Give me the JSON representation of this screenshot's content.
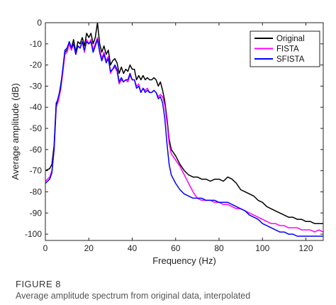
{
  "caption": {
    "figure_label": "FIGURE 8",
    "text": "Average amplitude spectrum from original data, interpolated"
  },
  "chart_data": {
    "type": "line",
    "xlabel": "Frequency (Hz)",
    "ylabel": "Average amplitude (dB)",
    "xlim": [
      0,
      128
    ],
    "ylim": [
      -103,
      0
    ],
    "xticks": [
      0,
      20,
      40,
      60,
      80,
      100,
      120
    ],
    "yticks": [
      0,
      -10,
      -20,
      -30,
      -40,
      -50,
      -60,
      -70,
      -80,
      -90,
      -100
    ],
    "grid": false,
    "legend_position": "top-right",
    "series": [
      {
        "name": "Original",
        "color": "#000000",
        "x": [
          0,
          2,
          3,
          4,
          5,
          6,
          7,
          8,
          9,
          10,
          11,
          12,
          13,
          14,
          15,
          16,
          17,
          18,
          19,
          20,
          21,
          22,
          23,
          24,
          25,
          26,
          27,
          28,
          29,
          30,
          31,
          32,
          33,
          34,
          35,
          36,
          37,
          38,
          39,
          40,
          41,
          42,
          43,
          44,
          45,
          46,
          47,
          48,
          49,
          50,
          51,
          52,
          53,
          54,
          55,
          56,
          57,
          58,
          60,
          62,
          64,
          66,
          68,
          70,
          72,
          74,
          76,
          78,
          80,
          82,
          84,
          86,
          88,
          90,
          92,
          94,
          96,
          98,
          100,
          102,
          104,
          106,
          108,
          110,
          112,
          114,
          116,
          118,
          120,
          122,
          124,
          126,
          128
        ],
        "y": [
          -70,
          -69,
          -67,
          -58,
          -38,
          -36,
          -30,
          -23,
          -14,
          -13,
          -9,
          -12,
          -8,
          -14,
          -9,
          -10,
          -7,
          -11,
          -5,
          -7,
          -5,
          -10,
          -7,
          0,
          -10,
          -14,
          -11,
          -15,
          -13,
          -20,
          -18,
          -17,
          -19,
          -24,
          -21,
          -24,
          -22,
          -23,
          -20,
          -22,
          -22,
          -27,
          -25,
          -27,
          -25,
          -27,
          -26,
          -27,
          -27,
          -26,
          -27,
          -30,
          -28,
          -32,
          -37,
          -45,
          -55,
          -60,
          -63,
          -67,
          -70,
          -72,
          -73,
          -73,
          -74,
          -74,
          -75,
          -74,
          -74,
          -75,
          -73,
          -74,
          -76,
          -79,
          -80,
          -81,
          -82,
          -84,
          -85,
          -87,
          -88,
          -89,
          -90,
          -91,
          -92,
          -92,
          -93,
          -93,
          -94,
          -94,
          -95,
          -95,
          -95
        ]
      },
      {
        "name": "FISTA",
        "color": "#ff00ff",
        "x": [
          0,
          2,
          3,
          4,
          5,
          6,
          7,
          8,
          9,
          10,
          11,
          12,
          13,
          14,
          15,
          16,
          17,
          18,
          19,
          20,
          21,
          22,
          23,
          24,
          25,
          26,
          27,
          28,
          29,
          30,
          31,
          32,
          33,
          34,
          35,
          36,
          37,
          38,
          39,
          40,
          41,
          42,
          43,
          44,
          45,
          46,
          47,
          48,
          49,
          50,
          51,
          52,
          53,
          54,
          55,
          56,
          57,
          58,
          60,
          62,
          64,
          66,
          68,
          70,
          72,
          74,
          76,
          78,
          80,
          82,
          84,
          86,
          88,
          90,
          92,
          94,
          96,
          98,
          100,
          102,
          104,
          106,
          108,
          110,
          112,
          114,
          116,
          118,
          120,
          122,
          124,
          126,
          128
        ],
        "y": [
          -75,
          -73,
          -70,
          -60,
          -40,
          -37,
          -32,
          -24,
          -15,
          -14,
          -10,
          -13,
          -10,
          -15,
          -11,
          -12,
          -9,
          -14,
          -8,
          -10,
          -8,
          -13,
          -10,
          -7,
          -13,
          -17,
          -14,
          -18,
          -16,
          -24,
          -22,
          -21,
          -23,
          -29,
          -27,
          -28,
          -27,
          -28,
          -25,
          -27,
          -27,
          -30,
          -29,
          -33,
          -31,
          -32,
          -31,
          -33,
          -33,
          -32,
          -33,
          -35,
          -34,
          -35,
          -39,
          -47,
          -57,
          -62,
          -65,
          -68,
          -72,
          -76,
          -80,
          -83,
          -84,
          -84,
          -84,
          -85,
          -85,
          -86,
          -86,
          -87,
          -88,
          -88,
          -89,
          -90,
          -91,
          -92,
          -93,
          -94,
          -95,
          -95,
          -96,
          -96,
          -97,
          -97,
          -97,
          -98,
          -98,
          -98,
          -99,
          -98,
          -99
        ]
      },
      {
        "name": "SFISTA",
        "color": "#0000ff",
        "x": [
          0,
          2,
          3,
          4,
          5,
          6,
          7,
          8,
          9,
          10,
          11,
          12,
          13,
          14,
          15,
          16,
          17,
          18,
          19,
          20,
          21,
          22,
          23,
          24,
          25,
          26,
          27,
          28,
          29,
          30,
          31,
          32,
          33,
          34,
          35,
          36,
          37,
          38,
          39,
          40,
          41,
          42,
          43,
          44,
          45,
          46,
          47,
          48,
          49,
          50,
          51,
          52,
          53,
          54,
          55,
          56,
          57,
          58,
          60,
          62,
          64,
          66,
          68,
          70,
          72,
          74,
          76,
          78,
          80,
          82,
          84,
          86,
          88,
          90,
          92,
          94,
          96,
          98,
          100,
          102,
          104,
          106,
          108,
          110,
          112,
          114,
          116,
          118,
          120,
          122,
          124,
          126,
          128
        ],
        "y": [
          -76,
          -74,
          -71,
          -60,
          -39,
          -35,
          -31,
          -22,
          -13,
          -12,
          -9,
          -12,
          -10,
          -15,
          -11,
          -12,
          -9,
          -13,
          -9,
          -10,
          -9,
          -14,
          -11,
          -8,
          -14,
          -18,
          -15,
          -19,
          -17,
          -23,
          -22,
          -20,
          -22,
          -28,
          -26,
          -28,
          -27,
          -27,
          -24,
          -27,
          -27,
          -31,
          -30,
          -33,
          -31,
          -33,
          -32,
          -33,
          -33,
          -32,
          -33,
          -36,
          -35,
          -38,
          -45,
          -57,
          -67,
          -72,
          -76,
          -79,
          -81,
          -82,
          -83,
          -83,
          -83,
          -84,
          -84,
          -84,
          -85,
          -85,
          -85,
          -86,
          -87,
          -88,
          -89,
          -91,
          -92,
          -93,
          -95,
          -96,
          -97,
          -98,
          -99,
          -99,
          -100,
          -100,
          -101,
          -101,
          -101,
          -101,
          -101,
          -101,
          -101
        ]
      }
    ]
  }
}
